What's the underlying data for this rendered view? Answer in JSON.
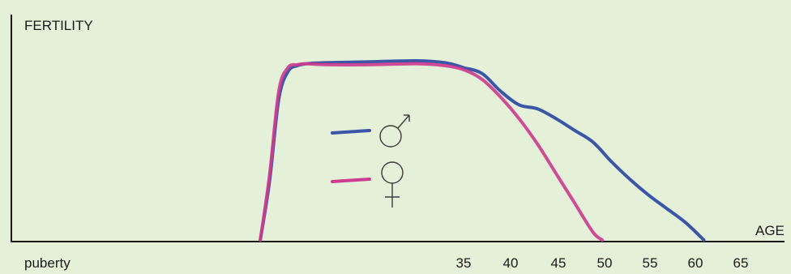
{
  "chart_data": {
    "type": "line",
    "title": "",
    "ylabel": "FERTILITY",
    "xlabel": "AGE",
    "x_ticks": [
      "puberty",
      "35",
      "40",
      "45",
      "50",
      "55",
      "60",
      "65"
    ],
    "ylim": [
      0,
      1
    ],
    "grid": false,
    "legend": {
      "position": "center",
      "entries": [
        "♂",
        "♀"
      ]
    },
    "series": [
      {
        "name": "♂",
        "color": "#3b56a6",
        "points": [
          [
            13,
            0.0
          ],
          [
            14,
            0.3
          ],
          [
            15,
            0.72
          ],
          [
            16,
            0.86
          ],
          [
            17,
            0.89
          ],
          [
            18,
            0.9
          ],
          [
            20,
            0.905
          ],
          [
            25,
            0.91
          ],
          [
            30,
            0.915
          ],
          [
            33,
            0.905
          ],
          [
            35,
            0.88
          ],
          [
            37,
            0.85
          ],
          [
            39,
            0.76
          ],
          [
            41,
            0.69
          ],
          [
            43,
            0.67
          ],
          [
            45,
            0.62
          ],
          [
            47,
            0.56
          ],
          [
            49,
            0.5
          ],
          [
            51,
            0.4
          ],
          [
            53,
            0.31
          ],
          [
            55,
            0.23
          ],
          [
            57,
            0.16
          ],
          [
            59,
            0.09
          ],
          [
            61,
            0.0
          ]
        ]
      },
      {
        "name": "♀",
        "color": "#cc3d8f",
        "points": [
          [
            13,
            0.0
          ],
          [
            14,
            0.33
          ],
          [
            15,
            0.76
          ],
          [
            16,
            0.88
          ],
          [
            17,
            0.895
          ],
          [
            18,
            0.9
          ],
          [
            20,
            0.895
          ],
          [
            25,
            0.895
          ],
          [
            30,
            0.9
          ],
          [
            33,
            0.89
          ],
          [
            35,
            0.87
          ],
          [
            37,
            0.82
          ],
          [
            39,
            0.73
          ],
          [
            41,
            0.62
          ],
          [
            43,
            0.49
          ],
          [
            45,
            0.34
          ],
          [
            47,
            0.19
          ],
          [
            49,
            0.04
          ],
          [
            50,
            0.0
          ]
        ]
      }
    ]
  }
}
